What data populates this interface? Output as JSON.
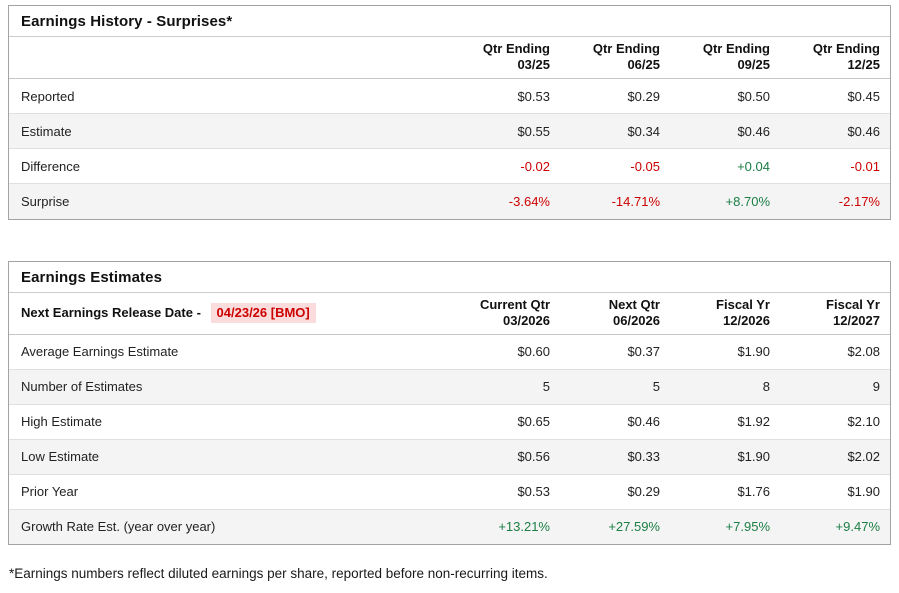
{
  "colors": {
    "positive": "#1b7e45",
    "negative": "#cc0000",
    "highlight_bg": "#fadcdc",
    "highlight_text": "#cc0000"
  },
  "history": {
    "title": "Earnings History - Surprises*",
    "columns": [
      {
        "line1": "Qtr Ending",
        "line2": "03/25"
      },
      {
        "line1": "Qtr Ending",
        "line2": "06/25"
      },
      {
        "line1": "Qtr Ending",
        "line2": "09/25"
      },
      {
        "line1": "Qtr Ending",
        "line2": "12/25"
      }
    ],
    "rows": [
      {
        "label": "Reported",
        "values": [
          {
            "text": "$0.53",
            "tone": "neutral"
          },
          {
            "text": "$0.29",
            "tone": "neutral"
          },
          {
            "text": "$0.50",
            "tone": "neutral"
          },
          {
            "text": "$0.45",
            "tone": "neutral"
          }
        ]
      },
      {
        "label": "Estimate",
        "values": [
          {
            "text": "$0.55",
            "tone": "neutral"
          },
          {
            "text": "$0.34",
            "tone": "neutral"
          },
          {
            "text": "$0.46",
            "tone": "neutral"
          },
          {
            "text": "$0.46",
            "tone": "neutral"
          }
        ]
      },
      {
        "label": "Difference",
        "values": [
          {
            "text": "-0.02",
            "tone": "negative"
          },
          {
            "text": "-0.05",
            "tone": "negative"
          },
          {
            "text": "+0.04",
            "tone": "positive"
          },
          {
            "text": "-0.01",
            "tone": "negative"
          }
        ]
      },
      {
        "label": "Surprise",
        "values": [
          {
            "text": "-3.64%",
            "tone": "negative"
          },
          {
            "text": "-14.71%",
            "tone": "negative"
          },
          {
            "text": "+8.70%",
            "tone": "positive"
          },
          {
            "text": "-2.17%",
            "tone": "negative"
          }
        ]
      }
    ]
  },
  "estimates": {
    "title": "Earnings Estimates",
    "release_label": "Next Earnings Release Date -",
    "release_date": "04/23/26 [BMO]",
    "columns": [
      {
        "line1": "Current Qtr",
        "line2": "03/2026"
      },
      {
        "line1": "Next Qtr",
        "line2": "06/2026"
      },
      {
        "line1": "Fiscal Yr",
        "line2": "12/2026"
      },
      {
        "line1": "Fiscal Yr",
        "line2": "12/2027"
      }
    ],
    "rows": [
      {
        "label": "Average Earnings Estimate",
        "values": [
          {
            "text": "$0.60",
            "tone": "neutral"
          },
          {
            "text": "$0.37",
            "tone": "neutral"
          },
          {
            "text": "$1.90",
            "tone": "neutral"
          },
          {
            "text": "$2.08",
            "tone": "neutral"
          }
        ]
      },
      {
        "label": "Number of Estimates",
        "values": [
          {
            "text": "5",
            "tone": "neutral"
          },
          {
            "text": "5",
            "tone": "neutral"
          },
          {
            "text": "8",
            "tone": "neutral"
          },
          {
            "text": "9",
            "tone": "neutral"
          }
        ]
      },
      {
        "label": "High Estimate",
        "values": [
          {
            "text": "$0.65",
            "tone": "neutral"
          },
          {
            "text": "$0.46",
            "tone": "neutral"
          },
          {
            "text": "$1.92",
            "tone": "neutral"
          },
          {
            "text": "$2.10",
            "tone": "neutral"
          }
        ]
      },
      {
        "label": "Low Estimate",
        "values": [
          {
            "text": "$0.56",
            "tone": "neutral"
          },
          {
            "text": "$0.33",
            "tone": "neutral"
          },
          {
            "text": "$1.90",
            "tone": "neutral"
          },
          {
            "text": "$2.02",
            "tone": "neutral"
          }
        ]
      },
      {
        "label": "Prior Year",
        "values": [
          {
            "text": "$0.53",
            "tone": "neutral"
          },
          {
            "text": "$0.29",
            "tone": "neutral"
          },
          {
            "text": "$1.76",
            "tone": "neutral"
          },
          {
            "text": "$1.90",
            "tone": "neutral"
          }
        ]
      },
      {
        "label": "Growth Rate Est. (year over year)",
        "values": [
          {
            "text": "+13.21%",
            "tone": "positive"
          },
          {
            "text": "+27.59%",
            "tone": "positive"
          },
          {
            "text": "+7.95%",
            "tone": "positive"
          },
          {
            "text": "+9.47%",
            "tone": "positive"
          }
        ]
      }
    ]
  },
  "footnote": "*Earnings numbers reflect diluted earnings per share, reported before non-recurring items."
}
